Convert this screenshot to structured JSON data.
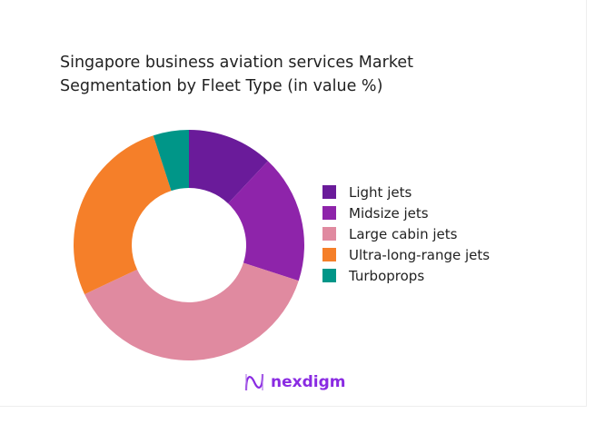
{
  "chart_data": {
    "type": "pie",
    "donut": true,
    "title": "Singapore business aviation services Market Segmentation by Fleet Type (in value %)",
    "categories": [
      "Light jets",
      "Midsize jets",
      "Large cabin jets",
      "Ultra-long-range jets",
      "Turboprops"
    ],
    "values": [
      12,
      18,
      38,
      27,
      5
    ],
    "colors": [
      "#6a1b9a",
      "#8e24aa",
      "#e08aa0",
      "#f57f29",
      "#009688"
    ],
    "legend_position": "right"
  },
  "brand": {
    "name": "nexdigm"
  }
}
